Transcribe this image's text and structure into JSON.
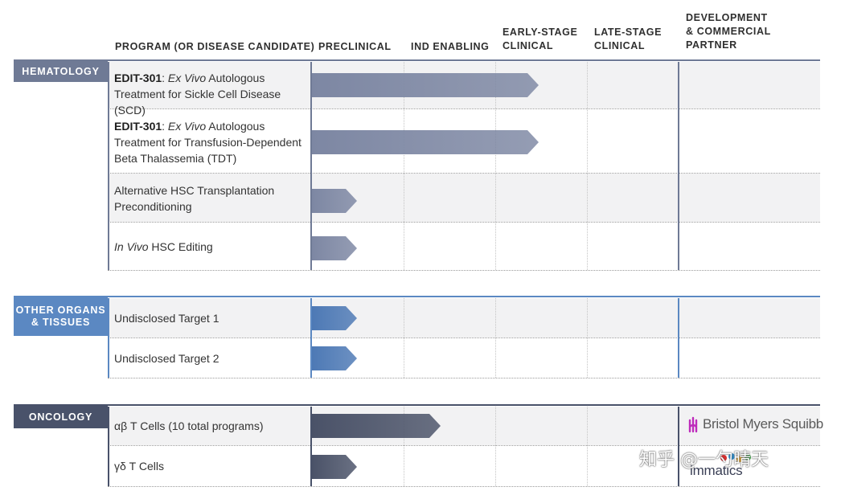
{
  "headers": {
    "program": "PROGRAM (OR DISEASE CANDIDATE)",
    "preclinical": "PRECLINICAL",
    "ind_enabling": "IND ENABLING",
    "early_stage": "EARLY-STAGE\nCLINICAL",
    "late_stage": "LATE-STAGE\nCLINICAL",
    "partner": "DEVELOPMENT\n& COMMERCIAL\nPARTNER"
  },
  "categories": {
    "hematology": "HEMATOLOGY",
    "other_organs": "OTHER ORGANS\n& TISSUES",
    "oncology": "ONCOLOGY"
  },
  "programs": {
    "edit301_scd": {
      "code": "EDIT-301",
      "sep": ": ",
      "italic": "Ex Vivo",
      "rest": " Autologous Treatment for Sickle Cell Disease (SCD)"
    },
    "edit301_tdt": {
      "code": "EDIT-301",
      "sep": ": ",
      "italic": "Ex Vivo",
      "rest": " Autologous Treatment for Transfusion-Dependent Beta Thalassemia (TDT)"
    },
    "alt_hsc": {
      "text": "Alternative HSC Transplantation Preconditioning"
    },
    "in_vivo": {
      "italic": "In Vivo",
      "rest": " HSC Editing"
    },
    "target1": {
      "text": "Undisclosed Target 1"
    },
    "target2": {
      "text": "Undisclosed Target 2"
    },
    "ab_t": {
      "text": "αβ T Cells (10 total programs)"
    },
    "gd_t": {
      "text": "γδ T Cells"
    }
  },
  "stages": [
    "Preclinical",
    "IND Enabling",
    "Early-Stage Clinical",
    "Late-Stage Clinical"
  ],
  "progress": {
    "edit301_scd": "Early-Stage Clinical",
    "edit301_tdt": "Early-Stage Clinical",
    "alt_hsc": "Preclinical",
    "in_vivo": "Preclinical",
    "target1": "Preclinical",
    "target2": "Preclinical",
    "ab_t": "IND Enabling",
    "gd_t": "Preclinical"
  },
  "partners": {
    "ab_t": "Bristol Myers Squibb",
    "gd_t": "immatics"
  },
  "watermark": "知乎 @一勺晴天",
  "colors": {
    "hematology": "#6f7a95",
    "other_organs": "#5b88c2",
    "oncology": "#49526a",
    "arrow_hematology": "#7d87a3",
    "arrow_other": "#4d79b5",
    "arrow_oncology": "#4a5268",
    "bms_purple": "#be2bbb",
    "immatics_red": "#d8302f"
  }
}
